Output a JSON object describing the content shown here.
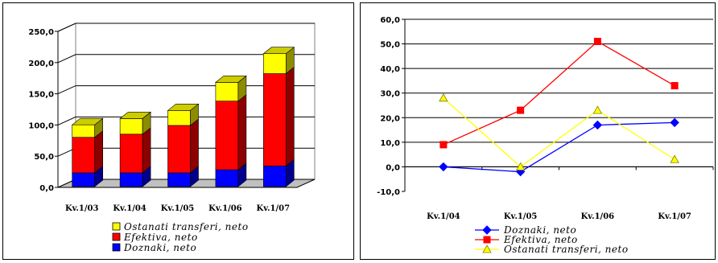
{
  "chart_data": [
    {
      "type": "bar",
      "stacked": true,
      "three_d": true,
      "categories": [
        "Kv.1/03",
        "Kv.1/04",
        "Kv.1/05",
        "Kv.1/06",
        "Kv.1/07"
      ],
      "series": [
        {
          "name": "Doznaki, neto",
          "values": [
            22,
            22,
            22,
            27,
            33
          ],
          "color": "#0000ff"
        },
        {
          "name": "Efektiva, neto",
          "values": [
            57,
            62,
            76,
            110,
            148
          ],
          "color": "#ff0000"
        },
        {
          "name": "Ostanati transferi, neto",
          "values": [
            20,
            25,
            24,
            30,
            32
          ],
          "color": "#ffff00"
        }
      ],
      "legend_order": [
        2,
        1,
        0
      ],
      "y_ticks": [
        "250,0",
        "200,0",
        "150,0",
        "100,0",
        "50,0",
        "0,0"
      ],
      "ylim": [
        0,
        250
      ],
      "grid": true,
      "legend": "bottom"
    },
    {
      "type": "line",
      "categories": [
        "Kv.1/04",
        "Kv.1/05",
        "Kv.1/06",
        "Kv.1/07"
      ],
      "series": [
        {
          "name": "Doznaki, neto",
          "values": [
            0.0,
            -2.0,
            17.0,
            18.0
          ],
          "color": "#0000ff",
          "marker": "diamond"
        },
        {
          "name": "Efektiva, neto",
          "values": [
            9.0,
            23.0,
            51.0,
            33.0
          ],
          "color": "#ff0000",
          "marker": "square"
        },
        {
          "name": "Ostanati transferi, neto",
          "values": [
            28.0,
            0.0,
            23.0,
            3.0
          ],
          "color": "#ffff00",
          "marker": "triangle"
        }
      ],
      "y_ticks": [
        "60,0",
        "50,0",
        "40,0",
        "30,0",
        "20,0",
        "10,0",
        "0,0",
        "-10,0"
      ],
      "ylim": [
        -10,
        60
      ],
      "grid": true,
      "legend": "bottom"
    }
  ]
}
